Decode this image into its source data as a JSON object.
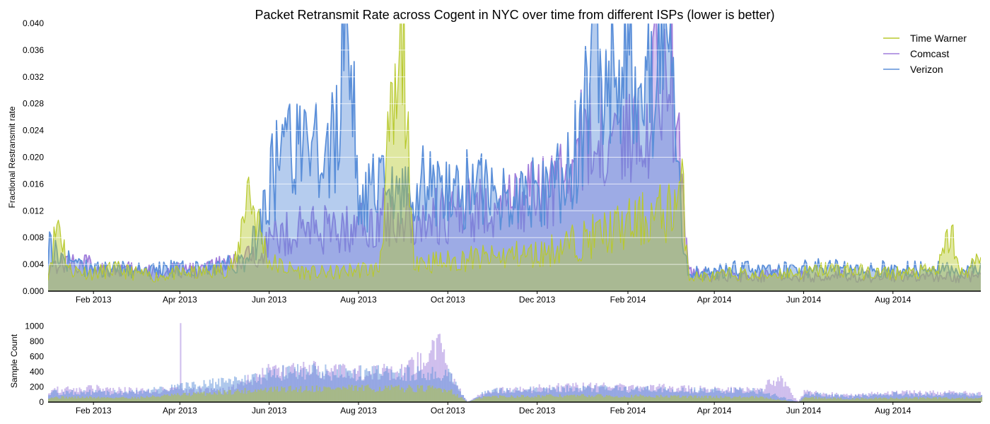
{
  "chart_data": [
    {
      "type": "area",
      "title": "Packet Retransmit Rate across Cogent in NYC over time from different ISPs (lower is better)",
      "ylabel": "Fractional Restransmit rate",
      "xlabel": "",
      "xlim": [
        "2013-01-01",
        "2014-09-30"
      ],
      "ylim": [
        0,
        0.04
      ],
      "y_ticks": [
        0.0,
        0.004,
        0.008,
        0.012,
        0.016,
        0.02,
        0.024,
        0.028,
        0.032,
        0.036,
        0.04
      ],
      "y_tick_labels": [
        "0.000",
        "0.004",
        "0.008",
        "0.012",
        "0.016",
        "0.020",
        "0.024",
        "0.028",
        "0.032",
        "0.036",
        "0.040"
      ],
      "x_ticks": [
        "2013-02-01",
        "2013-04-01",
        "2013-06-01",
        "2013-08-01",
        "2013-10-01",
        "2013-12-01",
        "2014-02-01",
        "2014-04-01",
        "2014-06-01",
        "2014-08-01"
      ],
      "x_tick_labels": [
        "Feb 2013",
        "Apr 2013",
        "Jun 2013",
        "Aug 2013",
        "Oct 2013",
        "Dec 2013",
        "Feb 2014",
        "Apr 2014",
        "Jun 2014",
        "Aug 2014"
      ],
      "grid": "horizontal",
      "legend_position": "top-right",
      "series": [
        {
          "name": "Time Warner",
          "color": "#b8c92e",
          "x": [
            "2013-01-01",
            "2013-01-08",
            "2013-01-15",
            "2013-02-01",
            "2013-02-15",
            "2013-03-01",
            "2013-03-15",
            "2013-04-01",
            "2013-04-15",
            "2013-05-01",
            "2013-05-10",
            "2013-05-17",
            "2013-05-22",
            "2013-06-01",
            "2013-06-15",
            "2013-07-01",
            "2013-07-15",
            "2013-08-01",
            "2013-08-15",
            "2013-08-22",
            "2013-08-28",
            "2013-09-01",
            "2013-09-05",
            "2013-09-08",
            "2013-09-15",
            "2013-10-01",
            "2013-10-15",
            "2013-11-01",
            "2013-11-15",
            "2013-12-01",
            "2013-12-15",
            "2014-01-01",
            "2014-01-15",
            "2014-02-01",
            "2014-02-15",
            "2014-03-01",
            "2014-03-10",
            "2014-03-15",
            "2014-04-01",
            "2014-04-15",
            "2014-05-01",
            "2014-05-15",
            "2014-06-01",
            "2014-06-15",
            "2014-07-01",
            "2014-07-15",
            "2014-08-01",
            "2014-08-15",
            "2014-09-01",
            "2014-09-10",
            "2014-09-15",
            "2014-09-22",
            "2014-09-30"
          ],
          "y": [
            0.0025,
            0.01,
            0.003,
            0.0025,
            0.003,
            0.0025,
            0.002,
            0.0025,
            0.0025,
            0.003,
            0.004,
            0.015,
            0.011,
            0.004,
            0.003,
            0.0025,
            0.0025,
            0.003,
            0.003,
            0.02,
            0.025,
            0.04,
            0.01,
            0.005,
            0.004,
            0.004,
            0.0045,
            0.0045,
            0.005,
            0.005,
            0.006,
            0.007,
            0.008,
            0.009,
            0.01,
            0.011,
            0.014,
            0.002,
            0.002,
            0.0025,
            0.002,
            0.0025,
            0.0025,
            0.003,
            0.003,
            0.0025,
            0.0025,
            0.0025,
            0.003,
            0.0085,
            0.0025,
            0.003,
            0.0045
          ]
        },
        {
          "name": "Comcast",
          "color": "#a07ddb",
          "x": [
            "2013-01-01",
            "2013-01-15",
            "2013-02-01",
            "2013-02-15",
            "2013-03-01",
            "2013-03-15",
            "2013-04-01",
            "2013-04-15",
            "2013-05-01",
            "2013-05-15",
            "2013-06-01",
            "2013-06-15",
            "2013-07-01",
            "2013-07-15",
            "2013-08-01",
            "2013-08-15",
            "2013-09-01",
            "2013-09-15",
            "2013-10-01",
            "2013-10-15",
            "2013-11-01",
            "2013-11-15",
            "2013-12-01",
            "2013-12-15",
            "2014-01-01",
            "2014-01-15",
            "2014-02-01",
            "2014-02-15",
            "2014-03-01",
            "2014-03-08",
            "2014-03-15",
            "2014-04-01",
            "2014-04-15",
            "2014-05-01",
            "2014-05-15",
            "2014-06-01",
            "2014-06-15",
            "2014-07-01",
            "2014-07-15",
            "2014-08-01",
            "2014-08-15",
            "2014-09-01",
            "2014-09-15",
            "2014-09-30"
          ],
          "y": [
            0.0035,
            0.004,
            0.0035,
            0.003,
            0.0028,
            0.0025,
            0.0028,
            0.003,
            0.0035,
            0.004,
            0.007,
            0.008,
            0.009,
            0.008,
            0.009,
            0.01,
            0.01,
            0.01,
            0.01,
            0.011,
            0.011,
            0.012,
            0.013,
            0.015,
            0.02,
            0.022,
            0.022,
            0.026,
            0.035,
            0.02,
            0.0025,
            0.002,
            0.0022,
            0.002,
            0.0022,
            0.002,
            0.002,
            0.0022,
            0.002,
            0.002,
            0.0022,
            0.002,
            0.002,
            0.002
          ]
        },
        {
          "name": "Verizon",
          "color": "#5b8fd9",
          "x": [
            "2013-01-01",
            "2013-01-15",
            "2013-02-01",
            "2013-02-15",
            "2013-03-01",
            "2013-03-15",
            "2013-04-01",
            "2013-04-15",
            "2013-05-01",
            "2013-05-15",
            "2013-05-25",
            "2013-06-01",
            "2013-06-15",
            "2013-07-01",
            "2013-07-15",
            "2013-07-25",
            "2013-08-01",
            "2013-08-15",
            "2013-09-01",
            "2013-09-15",
            "2013-10-01",
            "2013-10-15",
            "2013-11-01",
            "2013-11-15",
            "2013-12-01",
            "2013-12-15",
            "2014-01-01",
            "2014-01-08",
            "2014-01-15",
            "2014-02-01",
            "2014-02-15",
            "2014-03-01",
            "2014-03-10",
            "2014-03-15",
            "2014-04-01",
            "2014-04-15",
            "2014-05-01",
            "2014-05-15",
            "2014-06-01",
            "2014-06-15",
            "2014-07-01",
            "2014-07-15",
            "2014-08-01",
            "2014-08-15",
            "2014-09-01",
            "2014-09-15",
            "2014-09-30"
          ],
          "y": [
            0.006,
            0.004,
            0.003,
            0.003,
            0.003,
            0.003,
            0.003,
            0.003,
            0.0035,
            0.004,
            0.008,
            0.015,
            0.02,
            0.018,
            0.02,
            0.04,
            0.012,
            0.014,
            0.013,
            0.015,
            0.013,
            0.014,
            0.013,
            0.013,
            0.014,
            0.015,
            0.02,
            0.04,
            0.03,
            0.032,
            0.028,
            0.032,
            0.008,
            0.0025,
            0.0025,
            0.003,
            0.003,
            0.003,
            0.003,
            0.0035,
            0.003,
            0.003,
            0.003,
            0.003,
            0.003,
            0.003,
            0.003
          ]
        }
      ]
    },
    {
      "type": "bar",
      "title": "",
      "ylabel": "Sample Count",
      "xlabel": "",
      "xlim": [
        "2013-01-01",
        "2014-09-30"
      ],
      "ylim": [
        0,
        1080
      ],
      "y_ticks": [
        0,
        200,
        400,
        600,
        800,
        1000
      ],
      "y_tick_labels": [
        "0",
        "200",
        "400",
        "600",
        "800",
        "1000"
      ],
      "x_ticks": [
        "2013-02-01",
        "2013-04-01",
        "2013-06-01",
        "2013-08-01",
        "2013-10-01",
        "2013-12-01",
        "2014-02-01",
        "2014-04-01",
        "2014-06-01",
        "2014-08-01"
      ],
      "x_tick_labels": [
        "Feb 2013",
        "Apr 2013",
        "Jun 2013",
        "Aug 2013",
        "Oct 2013",
        "Dec 2013",
        "Feb 2014",
        "Apr 2014",
        "Jun 2014",
        "Aug 2014"
      ],
      "grid": "none",
      "series": [
        {
          "name": "Time Warner",
          "color": "#b8c92e",
          "x": [
            "2013-01-01",
            "2013-03-01",
            "2013-05-25",
            "2013-07-01",
            "2013-08-01",
            "2013-09-01",
            "2013-10-01",
            "2013-10-14",
            "2013-10-24",
            "2013-11-01",
            "2014-01-01",
            "2014-03-01",
            "2014-05-01",
            "2014-05-28",
            "2014-06-01",
            "2014-07-01",
            "2014-08-01",
            "2014-09-01",
            "2014-09-30"
          ],
          "y": [
            60,
            55,
            150,
            170,
            170,
            170,
            160,
            0,
            60,
            70,
            80,
            70,
            60,
            0,
            60,
            40,
            50,
            50,
            50
          ]
        },
        {
          "name": "Comcast",
          "color": "#a07ddb",
          "x": [
            "2013-01-01",
            "2013-02-01",
            "2013-03-01",
            "2013-03-31",
            "2013-04-01",
            "2013-04-02",
            "2013-05-01",
            "2013-05-25",
            "2013-06-01",
            "2013-07-01",
            "2013-08-01",
            "2013-09-01",
            "2013-09-25",
            "2013-10-01",
            "2013-10-14",
            "2013-10-24",
            "2013-11-01",
            "2014-01-01",
            "2014-03-01",
            "2014-04-01",
            "2014-05-01",
            "2014-05-15",
            "2014-05-28",
            "2014-06-01",
            "2014-07-01",
            "2014-08-01",
            "2014-09-01",
            "2014-09-30"
          ],
          "y": [
            150,
            170,
            140,
            150,
            1040,
            150,
            140,
            330,
            380,
            400,
            360,
            380,
            680,
            350,
            0,
            100,
            150,
            200,
            180,
            150,
            150,
            300,
            0,
            130,
            80,
            120,
            120,
            100
          ]
        },
        {
          "name": "Verizon",
          "color": "#5b8fd9",
          "x": [
            "2013-01-01",
            "2013-03-01",
            "2013-05-25",
            "2013-06-01",
            "2013-07-01",
            "2013-08-01",
            "2013-09-01",
            "2013-10-01",
            "2013-10-14",
            "2013-10-24",
            "2013-11-01",
            "2014-01-01",
            "2014-03-01",
            "2014-05-01",
            "2014-05-28",
            "2014-06-01",
            "2014-07-01",
            "2014-08-01",
            "2014-09-01",
            "2014-09-30"
          ],
          "y": [
            120,
            120,
            300,
            360,
            380,
            360,
            360,
            340,
            0,
            100,
            140,
            170,
            150,
            140,
            0,
            110,
            70,
            100,
            100,
            90
          ]
        }
      ]
    }
  ]
}
